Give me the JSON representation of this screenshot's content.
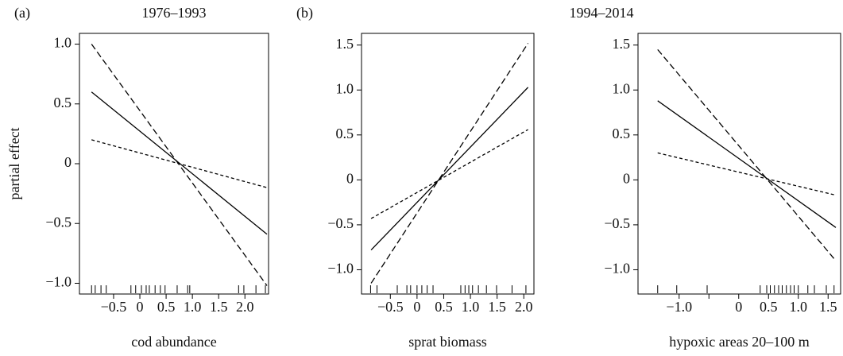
{
  "chart_data": [
    {
      "type": "line",
      "panel_label": "(a)",
      "title": "1976–1993",
      "ylabel": "partial effect",
      "xlabel": "cod abundance",
      "xlim": [
        -1.15,
        2.45
      ],
      "ylim": [
        -1.09,
        1.09
      ],
      "xticks": [
        {
          "value": -0.5,
          "label": "−0.5"
        },
        0,
        0.5,
        {
          "value": 1,
          "label": "1.0"
        },
        1.5,
        {
          "value": 2,
          "label": "2.0"
        }
      ],
      "yticks": [
        {
          "value": 1,
          "label": "1.0"
        },
        0.5,
        0,
        {
          "value": -0.5,
          "label": "−0.5"
        },
        {
          "value": -1,
          "label": "−1.0"
        }
      ],
      "series": [
        {
          "color": "#000000",
          "linestyle": "solid",
          "x": [
            -0.92,
            2.42
          ],
          "values": [
            0.6,
            -0.59
          ]
        },
        {
          "color": "#000000",
          "linestyle": "dashed",
          "x": [
            -0.92,
            2.42
          ],
          "values": [
            1.0,
            -1.02
          ]
        },
        {
          "color": "#000000",
          "linestyle": "dotted",
          "x": [
            -0.92,
            2.42
          ],
          "values": [
            0.2,
            -0.2
          ]
        }
      ],
      "rug": [
        -0.92,
        -0.85,
        -0.74,
        -0.64,
        -0.17,
        -0.08,
        0.03,
        0.12,
        0.18,
        0.29,
        0.39,
        0.48,
        0.71,
        0.91,
        0.95,
        1.88,
        1.98,
        2.21,
        2.39
      ]
    },
    {
      "type": "line",
      "panel_label": "(b)",
      "title": "1994–2014",
      "xlabel": "sprat biomass",
      "xlim": [
        -1.04,
        2.19
      ],
      "ylim": [
        -1.27,
        1.63
      ],
      "xticks": [
        {
          "value": -0.5,
          "label": "−0.5"
        },
        0,
        0.5,
        {
          "value": 1,
          "label": "1.0"
        },
        1.5,
        {
          "value": 2,
          "label": "2.0"
        }
      ],
      "yticks": [
        1.5,
        {
          "value": 1,
          "label": "1.0"
        },
        0.5,
        0,
        {
          "value": -0.5,
          "label": "−0.5"
        },
        {
          "value": -1,
          "label": "−1.0"
        }
      ],
      "series": [
        {
          "color": "#000000",
          "linestyle": "solid",
          "x": [
            -0.86,
            2.08
          ],
          "values": [
            -0.78,
            1.03
          ]
        },
        {
          "color": "#000000",
          "linestyle": "dashed",
          "x": [
            -0.86,
            2.08
          ],
          "values": [
            -1.15,
            1.52
          ]
        },
        {
          "color": "#000000",
          "linestyle": "dotted",
          "x": [
            -0.86,
            2.08
          ],
          "values": [
            -0.43,
            0.56
          ]
        }
      ],
      "rug": [
        -0.87,
        -0.75,
        -0.37,
        -0.19,
        -0.12,
        0,
        0.09,
        0.19,
        0.3,
        0.82,
        0.9,
        0.97,
        1.04,
        1.15,
        1.3,
        1.49,
        1.78,
        2.04
      ]
    },
    {
      "type": "line",
      "xlabel": "hypoxic areas 20–100 m",
      "xlim": [
        -1.69,
        1.71
      ],
      "ylim": [
        -1.27,
        1.63
      ],
      "xticks": [
        {
          "value": -1,
          "label": "−1.0"
        },
        {
          "value": -0.5,
          "label": null
        },
        0,
        0.5,
        {
          "value": 1,
          "label": "1.0"
        },
        1.5
      ],
      "yticks": [
        1.5,
        {
          "value": 1,
          "label": "1.0"
        },
        0.5,
        0,
        {
          "value": -0.5,
          "label": "−0.5"
        },
        {
          "value": -1,
          "label": "−1.0"
        }
      ],
      "series": [
        {
          "color": "#000000",
          "linestyle": "solid",
          "x": [
            -1.36,
            1.63
          ],
          "values": [
            0.88,
            -0.53
          ]
        },
        {
          "color": "#000000",
          "linestyle": "dashed",
          "x": [
            -1.36,
            1.63
          ],
          "values": [
            1.45,
            -0.9
          ]
        },
        {
          "color": "#000000",
          "linestyle": "dotted",
          "x": [
            -1.36,
            1.63
          ],
          "values": [
            0.3,
            -0.17
          ]
        }
      ],
      "rug": [
        -1.36,
        -1.04,
        -0.53,
        0.36,
        0.47,
        0.53,
        0.6,
        0.67,
        0.73,
        0.8,
        0.87,
        0.93,
        1.0,
        1.16,
        1.27,
        1.47,
        1.6
      ]
    }
  ]
}
